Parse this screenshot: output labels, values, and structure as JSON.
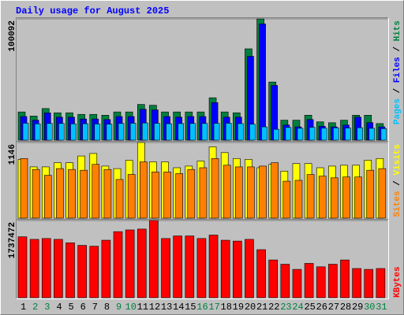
{
  "chart_data": [
    {
      "type": "bar",
      "title": "Daily usage for August 2025",
      "title_color": "#0000FF",
      "ylim": [
        0,
        100092
      ],
      "yticks": [
        100092
      ],
      "legend_position": "top",
      "legend_separator": " / ",
      "series": [
        {
          "name": "Hits",
          "color": "#008040",
          "values": [
            23300,
            19900,
            26100,
            22600,
            22600,
            21300,
            21300,
            20600,
            23300,
            23300,
            29500,
            28800,
            23300,
            23300,
            23300,
            23300,
            35000,
            23300,
            22600,
            75400,
            100092,
            48000,
            16500,
            16500,
            20600,
            15100,
            14400,
            16500,
            20600,
            20600,
            13700
          ]
        },
        {
          "name": "Files",
          "color": "#0000FF",
          "values": [
            19500,
            16500,
            22500,
            19000,
            19000,
            17500,
            17500,
            17000,
            19500,
            19500,
            25500,
            25000,
            19500,
            19000,
            19500,
            19500,
            31000,
            19000,
            19000,
            69200,
            96000,
            45200,
            12500,
            11000,
            17000,
            11500,
            11000,
            12500,
            19000,
            14500,
            11000
          ]
        },
        {
          "name": "Pages",
          "color": "#00C0FF",
          "values": [
            14000,
            13500,
            13800,
            13800,
            13500,
            13600,
            13400,
            13200,
            13800,
            14000,
            14200,
            13900,
            13600,
            13700,
            13800,
            13800,
            13900,
            14000,
            13700,
            13200,
            11000,
            9000,
            10500,
            9800,
            10600,
            9900,
            10200,
            10000,
            10300,
            9800,
            9500
          ]
        }
      ]
    },
    {
      "type": "bar",
      "ylim": [
        0,
        1146
      ],
      "yticks": [
        1146
      ],
      "legend_position": "top",
      "legend_separator": " / ",
      "series": [
        {
          "name": "Visits",
          "color": "#FFFF00",
          "values": [
            891,
            777,
            777,
            840,
            840,
            942,
            980,
            789,
            751,
            878,
            1146,
            853,
            853,
            764,
            789,
            866,
            1082,
            993,
            904,
            891,
            764,
            815,
            713,
            827,
            827,
            764,
            789,
            802,
            802,
            878,
            904
          ]
        },
        {
          "name": "Sites",
          "color": "#FF8000",
          "values": [
            904,
            738,
            649,
            751,
            738,
            726,
            815,
            738,
            586,
            662,
            853,
            700,
            700,
            675,
            738,
            764,
            904,
            802,
            777,
            777,
            789,
            840,
            560,
            573,
            662,
            637,
            611,
            624,
            624,
            726,
            751
          ]
        }
      ]
    },
    {
      "type": "bar",
      "ylim": [
        0,
        1737472
      ],
      "yticks": [
        1737472
      ],
      "legend_position": "bottom",
      "categories": [
        "1",
        "2",
        "3",
        "4",
        "5",
        "6",
        "7",
        "8",
        "9",
        "10",
        "11",
        "12",
        "13",
        "14",
        "15",
        "16",
        "17",
        "18",
        "19",
        "20",
        "21",
        "22",
        "23",
        "24",
        "25",
        "26",
        "27",
        "28",
        "29",
        "30",
        "31"
      ],
      "category_colors": [
        "#000000",
        "#008040",
        "#008040",
        "#000000",
        "#000000",
        "#000000",
        "#000000",
        "#000000",
        "#008040",
        "#008040",
        "#000000",
        "#000000",
        "#000000",
        "#000000",
        "#000000",
        "#008040",
        "#008040",
        "#000000",
        "#000000",
        "#000000",
        "#000000",
        "#000000",
        "#008040",
        "#008040",
        "#000000",
        "#000000",
        "#000000",
        "#000000",
        "#000000",
        "#008040",
        "#008040"
      ],
      "series": [
        {
          "name": "KBytes",
          "color": "#FF0000",
          "values": [
            1370655,
            1312740,
            1332045,
            1312740,
            1235520,
            1177605,
            1158300,
            1293435,
            1486485,
            1525095,
            1544400,
            1737472,
            1332045,
            1389960,
            1389960,
            1332045,
            1409265,
            1293435,
            1274130,
            1312740,
            1081080,
            849420,
            752895,
            637065,
            772200,
            694980,
            752895,
            849420,
            656370,
            637065,
            656370
          ]
        }
      ]
    }
  ]
}
